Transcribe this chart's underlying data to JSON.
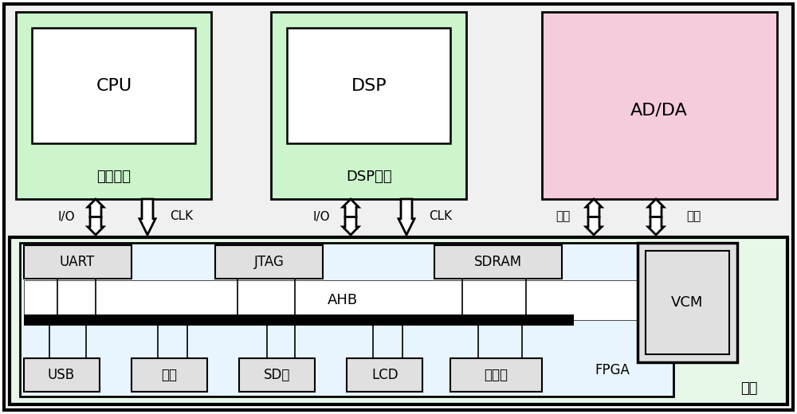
{
  "fig_w": 10.0,
  "fig_h": 5.2,
  "dpi": 100,
  "c_white": "#ffffff",
  "c_black": "#000000",
  "c_outer_bg": "#f0f0f0",
  "c_green_box": "#ccf5cc",
  "c_pink_box": "#f5ccdd",
  "c_baseboard": "#e8f8e8",
  "c_fpga": "#e8f8e8",
  "c_ahb_white": "#ffffff",
  "c_gray_box": "#e0e0e0",
  "c_vcm_bg": "#e8e8e8",
  "labels": {
    "cpu": "CPU",
    "cpu_unit": "核心单元",
    "dsp": "DSP",
    "dsp_unit": "DSP单元",
    "adda": "AD/DA",
    "io": "I/O",
    "clk": "CLK",
    "data": "数据",
    "ctrl": "控制",
    "uart": "UART",
    "jtag": "JTAG",
    "sdram": "SDRAM",
    "ahb": "AHB",
    "fpga": "FPGA",
    "vcm": "VCM",
    "usb": "USB",
    "flash": "闪存",
    "sdcard": "SD卡",
    "lcd": "LCD",
    "ethernet": "以太网",
    "baseboard": "基板"
  }
}
